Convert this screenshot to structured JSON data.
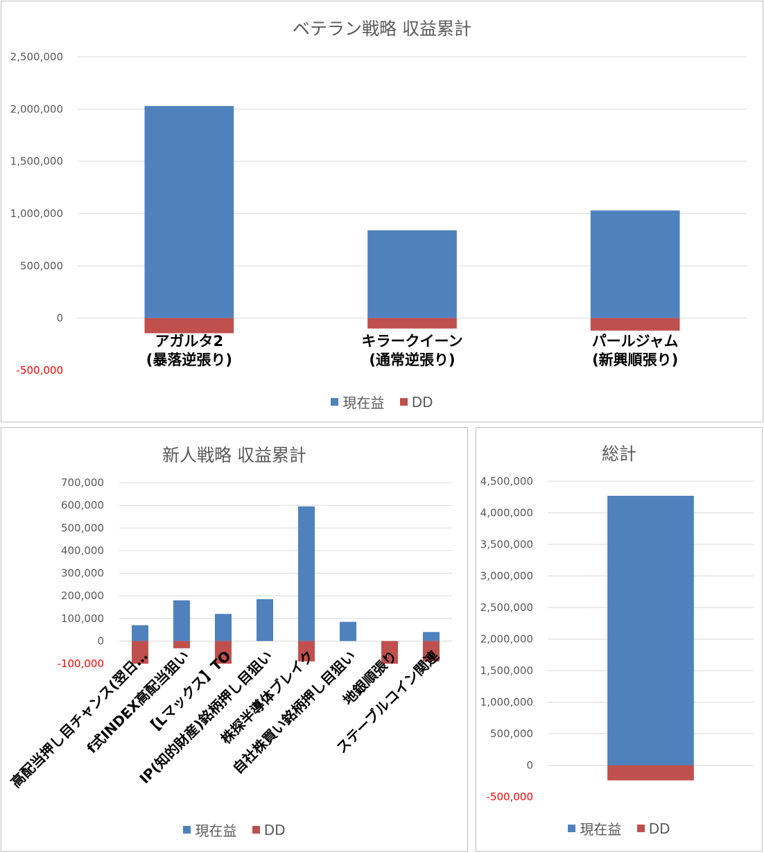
{
  "colors": {
    "profit": "#4f81bd",
    "dd": "#c0504d",
    "grid": "#d9d9d9",
    "axis_text": "#595959",
    "negative_text": "#ff0000"
  },
  "legend": {
    "profit": "現在益",
    "dd": "DD"
  },
  "chart_data": [
    {
      "type": "bar",
      "title": "ベテラン戦略 収益累計",
      "categories": [
        "アガルタ2\n(暴落逆張り)",
        "キラークイーン\n(通常逆張り)",
        "パールジャム\n(新興順張り)"
      ],
      "series": [
        {
          "name": "現在益",
          "values": [
            2030000,
            840000,
            1030000
          ]
        },
        {
          "name": "DD",
          "values": [
            -145000,
            -100000,
            -120000
          ]
        }
      ],
      "ylim": [
        -500000,
        2500000
      ],
      "yticks": [
        "2,500,000",
        "2,000,000",
        "1,500,000",
        "1,000,000",
        "500,000",
        "0",
        "-500,000"
      ],
      "legend_position": "bottom",
      "grid": true
    },
    {
      "type": "bar",
      "title": "新人戦略 収益累計",
      "categories": [
        "高配当押し目チャンス(翌日…",
        "f式INDEX高配当狙い",
        "【Lマックス】TO",
        "IP(知的財産)銘柄押し目狙い",
        "株探半導体ブレイク",
        "自社株買い銘柄押し目狙い",
        "地銀順張り",
        "ステーブルコイン関連"
      ],
      "series": [
        {
          "name": "現在益",
          "values": [
            70000,
            180000,
            120000,
            185000,
            595000,
            85000,
            0,
            40000
          ]
        },
        {
          "name": "DD",
          "values": [
            -100000,
            -32000,
            -100000,
            0,
            -90000,
            0,
            -100000,
            -90000
          ]
        }
      ],
      "ylim": [
        -100000,
        700000
      ],
      "yticks": [
        "700,000",
        "600,000",
        "500,000",
        "400,000",
        "300,000",
        "200,000",
        "100,000",
        "0",
        "-100,000"
      ],
      "legend_position": "bottom",
      "grid": true
    },
    {
      "type": "bar",
      "title": "総計",
      "categories": [
        ""
      ],
      "series": [
        {
          "name": "現在益",
          "values": [
            4270000
          ]
        },
        {
          "name": "DD",
          "values": [
            -240000
          ]
        }
      ],
      "ylim": [
        -500000,
        4500000
      ],
      "yticks": [
        "4,500,000",
        "4,000,000",
        "3,500,000",
        "3,000,000",
        "2,500,000",
        "2,000,000",
        "1,500,000",
        "1,000,000",
        "500,000",
        "0",
        "-500,000"
      ],
      "legend_position": "bottom",
      "grid": true
    }
  ]
}
